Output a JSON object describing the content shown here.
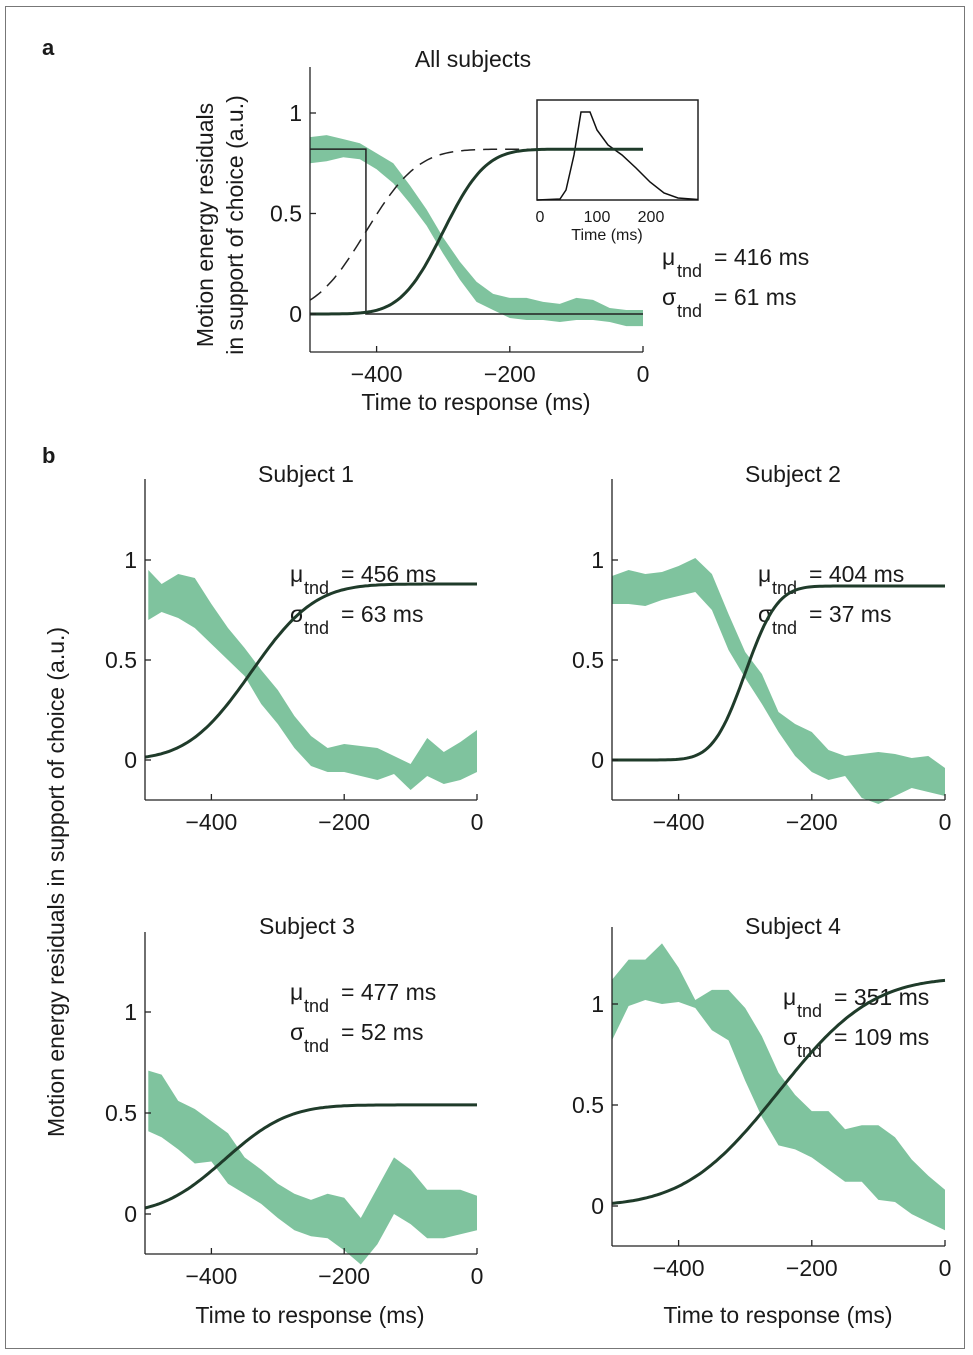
{
  "colors": {
    "band": "#7fc39e",
    "fit": "#1f3b2a",
    "axis": "#222222"
  },
  "panel_a": {
    "label": "a",
    "title": "All subjects",
    "ylabel_line1": "Motion energy residuals",
    "ylabel_line2": "in support of choice (a.u.)",
    "xlabel": "Time to response (ms)",
    "mu_value": "= 416 ms",
    "sigma_value": "= 61 ms",
    "inset": {
      "xlabel": "Time (ms)",
      "xticks": [
        "0",
        "100",
        "200"
      ]
    }
  },
  "panel_b": {
    "label": "b",
    "ylabel": "Motion energy residuals  in support of choice (a.u.)",
    "xlabel": "Time to response (ms)"
  },
  "stat_symbols": {
    "mu": "μ",
    "sigma": "σ",
    "sub": "tnd"
  },
  "chart_data": [
    {
      "type": "line",
      "title": "All subjects",
      "xlabel": "Time to response (ms)",
      "ylabel": "Motion energy residuals in support of choice (a.u.)",
      "xlim": [
        -500,
        0
      ],
      "ylim": [
        -0.2,
        1.22
      ],
      "xticks": [
        -400,
        -200,
        0
      ],
      "xtick_labels": [
        "−400",
        "−200",
        "0"
      ],
      "yticks": [
        0,
        0.5,
        1
      ],
      "ytick_labels": [
        "0",
        "0.5",
        "1"
      ],
      "mu_tnd": 416,
      "sigma_tnd": 61,
      "band_x": [
        -500,
        -475,
        -450,
        -425,
        -400,
        -375,
        -350,
        -325,
        -300,
        -275,
        -250,
        -225,
        -200,
        -175,
        -150,
        -125,
        -100,
        -75,
        -50,
        -25,
        0
      ],
      "band_upper": [
        0.88,
        0.89,
        0.87,
        0.85,
        0.8,
        0.75,
        0.64,
        0.52,
        0.38,
        0.26,
        0.16,
        0.1,
        0.08,
        0.08,
        0.06,
        0.05,
        0.08,
        0.07,
        0.03,
        0.02,
        0.02
      ],
      "band_lower": [
        0.75,
        0.76,
        0.78,
        0.77,
        0.72,
        0.65,
        0.55,
        0.44,
        0.3,
        0.17,
        0.06,
        0.02,
        -0.02,
        -0.03,
        -0.03,
        -0.04,
        -0.03,
        -0.03,
        -0.04,
        -0.06,
        -0.06
      ],
      "fit": {
        "amp": 0.82,
        "mu": 300,
        "sigma": 50
      },
      "dashed": {
        "amp": 0.82,
        "mu": 416,
        "sigma": 61
      },
      "step": {
        "amp": 0.82,
        "t": -416
      }
    },
    {
      "type": "line",
      "title": "Subject 1",
      "xlim": [
        -500,
        0
      ],
      "ylim": [
        -0.2,
        1.4
      ],
      "xticks": [
        -400,
        -200,
        0
      ],
      "xtick_labels": [
        "−400",
        "−200",
        "0"
      ],
      "yticks": [
        0,
        0.5,
        1
      ],
      "ytick_labels": [
        "0",
        "0.5",
        "1"
      ],
      "mu_value": "= 456 ms",
      "sigma_value": "= 63 ms",
      "band_x": [
        -495,
        -475,
        -450,
        -425,
        -400,
        -375,
        -350,
        -325,
        -300,
        -275,
        -250,
        -225,
        -200,
        -175,
        -150,
        -125,
        -100,
        -75,
        -50,
        -25,
        0
      ],
      "band_upper": [
        0.95,
        0.88,
        0.93,
        0.91,
        0.78,
        0.66,
        0.56,
        0.45,
        0.35,
        0.22,
        0.12,
        0.06,
        0.08,
        0.07,
        0.06,
        0.02,
        -0.02,
        0.11,
        0.04,
        0.09,
        0.15
      ],
      "band_lower": [
        0.7,
        0.74,
        0.71,
        0.66,
        0.58,
        0.5,
        0.42,
        0.28,
        0.18,
        0.06,
        -0.03,
        -0.06,
        -0.06,
        -0.08,
        -0.1,
        -0.07,
        -0.15,
        -0.08,
        -0.12,
        -0.1,
        -0.06
      ],
      "fit": {
        "amp": 0.88,
        "mu": 340,
        "sigma": 75
      }
    },
    {
      "type": "line",
      "title": "Subject 2",
      "xlim": [
        -500,
        0
      ],
      "ylim": [
        -0.2,
        1.4
      ],
      "xticks": [
        -400,
        -200,
        0
      ],
      "xtick_labels": [
        "−400",
        "−200",
        "0"
      ],
      "yticks": [
        0,
        0.5,
        1
      ],
      "ytick_labels": [
        "0",
        "0.5",
        "1"
      ],
      "mu_value": "= 404 ms",
      "sigma_value": "= 37 ms",
      "band_x": [
        -500,
        -475,
        -450,
        -425,
        -400,
        -375,
        -350,
        -325,
        -300,
        -275,
        -250,
        -225,
        -200,
        -175,
        -150,
        -125,
        -100,
        -75,
        -50,
        -25,
        0
      ],
      "band_upper": [
        0.92,
        0.95,
        0.93,
        0.94,
        0.97,
        1.01,
        0.93,
        0.73,
        0.54,
        0.43,
        0.24,
        0.18,
        0.14,
        0.05,
        0.02,
        0.03,
        0.04,
        0.03,
        0.01,
        0.02,
        -0.04
      ],
      "band_lower": [
        0.78,
        0.78,
        0.77,
        0.8,
        0.82,
        0.84,
        0.75,
        0.55,
        0.41,
        0.28,
        0.14,
        0.02,
        -0.06,
        -0.1,
        -0.08,
        -0.19,
        -0.22,
        -0.18,
        -0.14,
        -0.16,
        -0.18
      ],
      "fit": {
        "amp": 0.87,
        "mu": 300,
        "sigma": 38
      }
    },
    {
      "type": "line",
      "title": "Subject 3",
      "xlim": [
        -500,
        0
      ],
      "ylim": [
        -0.2,
        1.4
      ],
      "xticks": [
        -400,
        -200,
        0
      ],
      "xtick_labels": [
        "−400",
        "−200",
        "0"
      ],
      "yticks": [
        0,
        0.5,
        1
      ],
      "ytick_labels": [
        "0",
        "0.5",
        "1"
      ],
      "mu_value": "= 477 ms",
      "sigma_value": "= 52 ms",
      "band_x": [
        -495,
        -475,
        -450,
        -425,
        -400,
        -375,
        -350,
        -325,
        -300,
        -275,
        -250,
        -225,
        -200,
        -175,
        -150,
        -125,
        -100,
        -75,
        -50,
        -25,
        0
      ],
      "band_upper": [
        0.71,
        0.69,
        0.56,
        0.52,
        0.46,
        0.4,
        0.28,
        0.22,
        0.15,
        0.1,
        0.07,
        0.1,
        0.08,
        -0.02,
        0.13,
        0.28,
        0.22,
        0.12,
        0.12,
        0.12,
        0.09
      ],
      "band_lower": [
        0.41,
        0.38,
        0.32,
        0.25,
        0.26,
        0.15,
        0.1,
        0.05,
        -0.02,
        -0.08,
        -0.11,
        -0.12,
        -0.18,
        -0.25,
        -0.15,
        0.0,
        -0.05,
        -0.12,
        -0.12,
        -0.1,
        -0.08
      ],
      "fit": {
        "amp": 0.54,
        "mu": 380,
        "sigma": 75
      }
    },
    {
      "type": "line",
      "title": "Subject 4",
      "xlim": [
        -500,
        0
      ],
      "ylim": [
        -0.2,
        1.4
      ],
      "xticks": [
        -400,
        -200,
        0
      ],
      "xtick_labels": [
        "−400",
        "−200",
        "0"
      ],
      "yticks": [
        0,
        0.5,
        1
      ],
      "ytick_labels": [
        "0",
        "0.5",
        "1"
      ],
      "mu_value": "= 351 ms",
      "sigma_value": "= 109 ms",
      "band_x": [
        -500,
        -475,
        -450,
        -425,
        -400,
        -375,
        -350,
        -325,
        -300,
        -275,
        -250,
        -225,
        -200,
        -175,
        -150,
        -125,
        -100,
        -75,
        -50,
        -25,
        0
      ],
      "band_upper": [
        1.12,
        1.22,
        1.22,
        1.3,
        1.18,
        1.02,
        1.07,
        1.07,
        0.98,
        0.84,
        0.66,
        0.55,
        0.47,
        0.47,
        0.38,
        0.4,
        0.4,
        0.34,
        0.23,
        0.15,
        0.08
      ],
      "band_lower": [
        0.82,
        0.99,
        1.02,
        1.0,
        1.01,
        0.98,
        0.87,
        0.82,
        0.62,
        0.44,
        0.3,
        0.28,
        0.24,
        0.18,
        0.12,
        0.12,
        0.03,
        0.02,
        -0.04,
        -0.08,
        -0.12
      ],
      "fit": {
        "amp": 1.13,
        "mu": 250,
        "sigma": 110
      }
    }
  ]
}
